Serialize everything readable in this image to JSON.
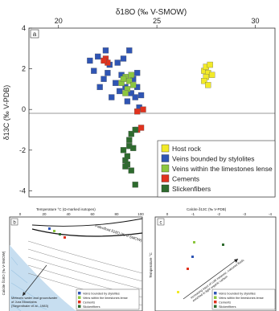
{
  "chart_data": [
    {
      "type": "scatter",
      "panel_label": "a",
      "x_top_label": "δ18O (‰ V-SMOW)",
      "ylabel": "δ13C (‰ V-PDB)",
      "xlim": [
        18.5,
        31
      ],
      "ylim": [
        -4.3,
        4
      ],
      "x_ticks": [
        20,
        25,
        30
      ],
      "y_ticks": [
        4,
        2,
        0,
        -2,
        -4
      ],
      "legend_position": "lower-right",
      "series": [
        {
          "name": "Host rock",
          "color": "#f2ea28",
          "points": [
            [
              27.4,
              1.9
            ],
            [
              27.5,
              2.1
            ],
            [
              27.6,
              1.8
            ],
            [
              27.5,
              1.6
            ],
            [
              27.4,
              1.4
            ],
            [
              27.7,
              2.2
            ],
            [
              27.6,
              1.2
            ],
            [
              27.8,
              1.7
            ]
          ]
        },
        {
          "name": "Veins bounded by stylolites",
          "color": "#2f55b4",
          "points": [
            [
              21.6,
              2.4
            ],
            [
              21.8,
              1.9
            ],
            [
              22.0,
              2.6
            ],
            [
              22.1,
              1.1
            ],
            [
              22.3,
              1.5
            ],
            [
              22.5,
              1.8
            ],
            [
              22.6,
              2.2
            ],
            [
              22.7,
              0.6
            ],
            [
              22.9,
              1.3
            ],
            [
              23.0,
              2.3
            ],
            [
              23.1,
              0.9
            ],
            [
              23.2,
              1.7
            ],
            [
              23.4,
              1.1
            ],
            [
              23.5,
              0.4
            ],
            [
              23.6,
              2.9
            ],
            [
              23.7,
              0.8
            ],
            [
              23.8,
              1.5
            ],
            [
              23.9,
              0.6
            ],
            [
              24.0,
              1.1
            ],
            [
              24.1,
              0.1
            ],
            [
              24.2,
              0.7
            ],
            [
              24.0,
              1.8
            ],
            [
              23.3,
              2.5
            ],
            [
              22.4,
              2.9
            ]
          ]
        },
        {
          "name": "Veins within the limestones lense",
          "color": "#8cc63f",
          "points": [
            [
              23.2,
              1.3
            ],
            [
              23.4,
              1.6
            ],
            [
              23.6,
              1.4
            ],
            [
              23.5,
              1.0
            ],
            [
              23.8,
              1.2
            ],
            [
              23.3,
              1.5
            ],
            [
              23.7,
              1.7
            ],
            [
              23.4,
              0.8
            ]
          ]
        },
        {
          "name": "Cements",
          "color": "#e0321e",
          "points": [
            [
              22.4,
              2.5
            ],
            [
              22.5,
              2.3
            ],
            [
              22.3,
              2.4
            ],
            [
              24.0,
              -1.0
            ],
            [
              24.2,
              -0.9
            ],
            [
              24.0,
              -0.1
            ],
            [
              24.3,
              0.0
            ]
          ]
        },
        {
          "name": "Slickenfibers",
          "color": "#2e6b2e",
          "points": [
            [
              23.3,
              -2.0
            ],
            [
              23.4,
              -2.5
            ],
            [
              23.5,
              -2.3
            ],
            [
              23.6,
              -1.5
            ],
            [
              23.6,
              -1.8
            ],
            [
              23.7,
              -1.2
            ],
            [
              23.8,
              -1.9
            ],
            [
              23.5,
              -2.7
            ],
            [
              23.7,
              -3.0
            ],
            [
              23.9,
              -1.0
            ],
            [
              23.9,
              -3.7
            ],
            [
              23.4,
              -2.8
            ]
          ]
        }
      ]
    },
    {
      "type": "line",
      "panel_label": "b",
      "x_top_label": "Temperature °C (Ω-marked isotopes)",
      "ylabel": "Calcite δ18O (‰ V-SMOW)",
      "curve_label": "Paleofluid δ18O (‰ V-SMOW)",
      "x_ticks": [
        "0",
        "20",
        "40",
        "60",
        "80",
        "100"
      ],
      "region_label_lines": [
        "Meteoric water and groundwater",
        "of Jura Mountains",
        "(Siegenthaler et al., 1983)"
      ],
      "legend": [
        "Veins bounded by stylolites",
        "Veins within the limestones lense",
        "Cements",
        "Slickenfibers"
      ]
    },
    {
      "type": "scatter",
      "panel_label": "c",
      "x_top_label": "Calcite δ13C (‰ V-PDB)",
      "ylabel": "Temperature °C",
      "x_ticks": [
        "0",
        "-1",
        "-2",
        "-3",
        "-4"
      ],
      "arrow_label_lines": [
        "Increasing input of cold meteoric, coloured fluids",
        "enriched in light organic carbon"
      ],
      "legend": [
        "Veins bounded by stylolites",
        "Veins within the limestones lense",
        "Cements",
        "Slickenfibers"
      ]
    }
  ]
}
